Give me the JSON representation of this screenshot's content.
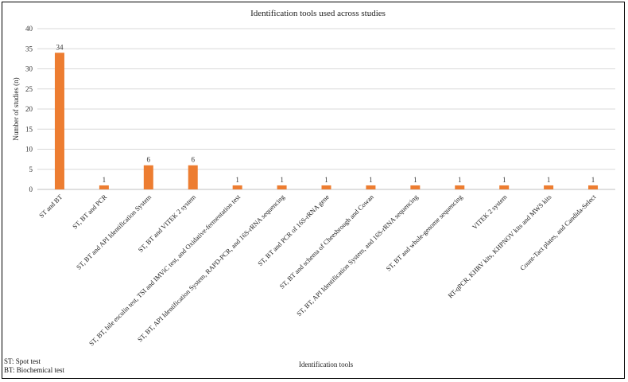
{
  "chart_data": {
    "type": "bar",
    "title": "Identification tools used across studies",
    "xlabel": "Identification tools",
    "ylabel": "Number of studies (n)",
    "ylim": [
      0,
      40
    ],
    "yticks": [
      0,
      5,
      10,
      15,
      20,
      25,
      30,
      35,
      40
    ],
    "grid": true,
    "bar_color": "#ED7D31",
    "categories": [
      "ST and BT",
      "ST, BT and PCR",
      "ST, BT and API Identification System",
      "ST, BT and VITEK 2 system",
      "ST, BT, bile esculin test, TSI and IMViC test, and Oxidative-fermentation test",
      "ST, BT, API Identification System, RAPD-PCR, and 16S-rRNA sequencing",
      "ST, BT and PCR of 16S-rRNA gene",
      "ST, BT and schema of Cheesbrough and Cowan",
      "ST, BT, API Identification System, and 16S-rRNA sequencing",
      "ST, BT and whole-genome sequencing",
      "VITEK 2 system",
      "RT-qPCR, KHRV kits, KHPNOV kits and MWS kits",
      "Count-Tact plates, and Candida-Select"
    ],
    "values": [
      34,
      1,
      6,
      6,
      1,
      1,
      1,
      1,
      1,
      1,
      1,
      1,
      1
    ]
  },
  "notes": {
    "st": "ST: Spot test",
    "bt": "BT: Biochemical test"
  }
}
